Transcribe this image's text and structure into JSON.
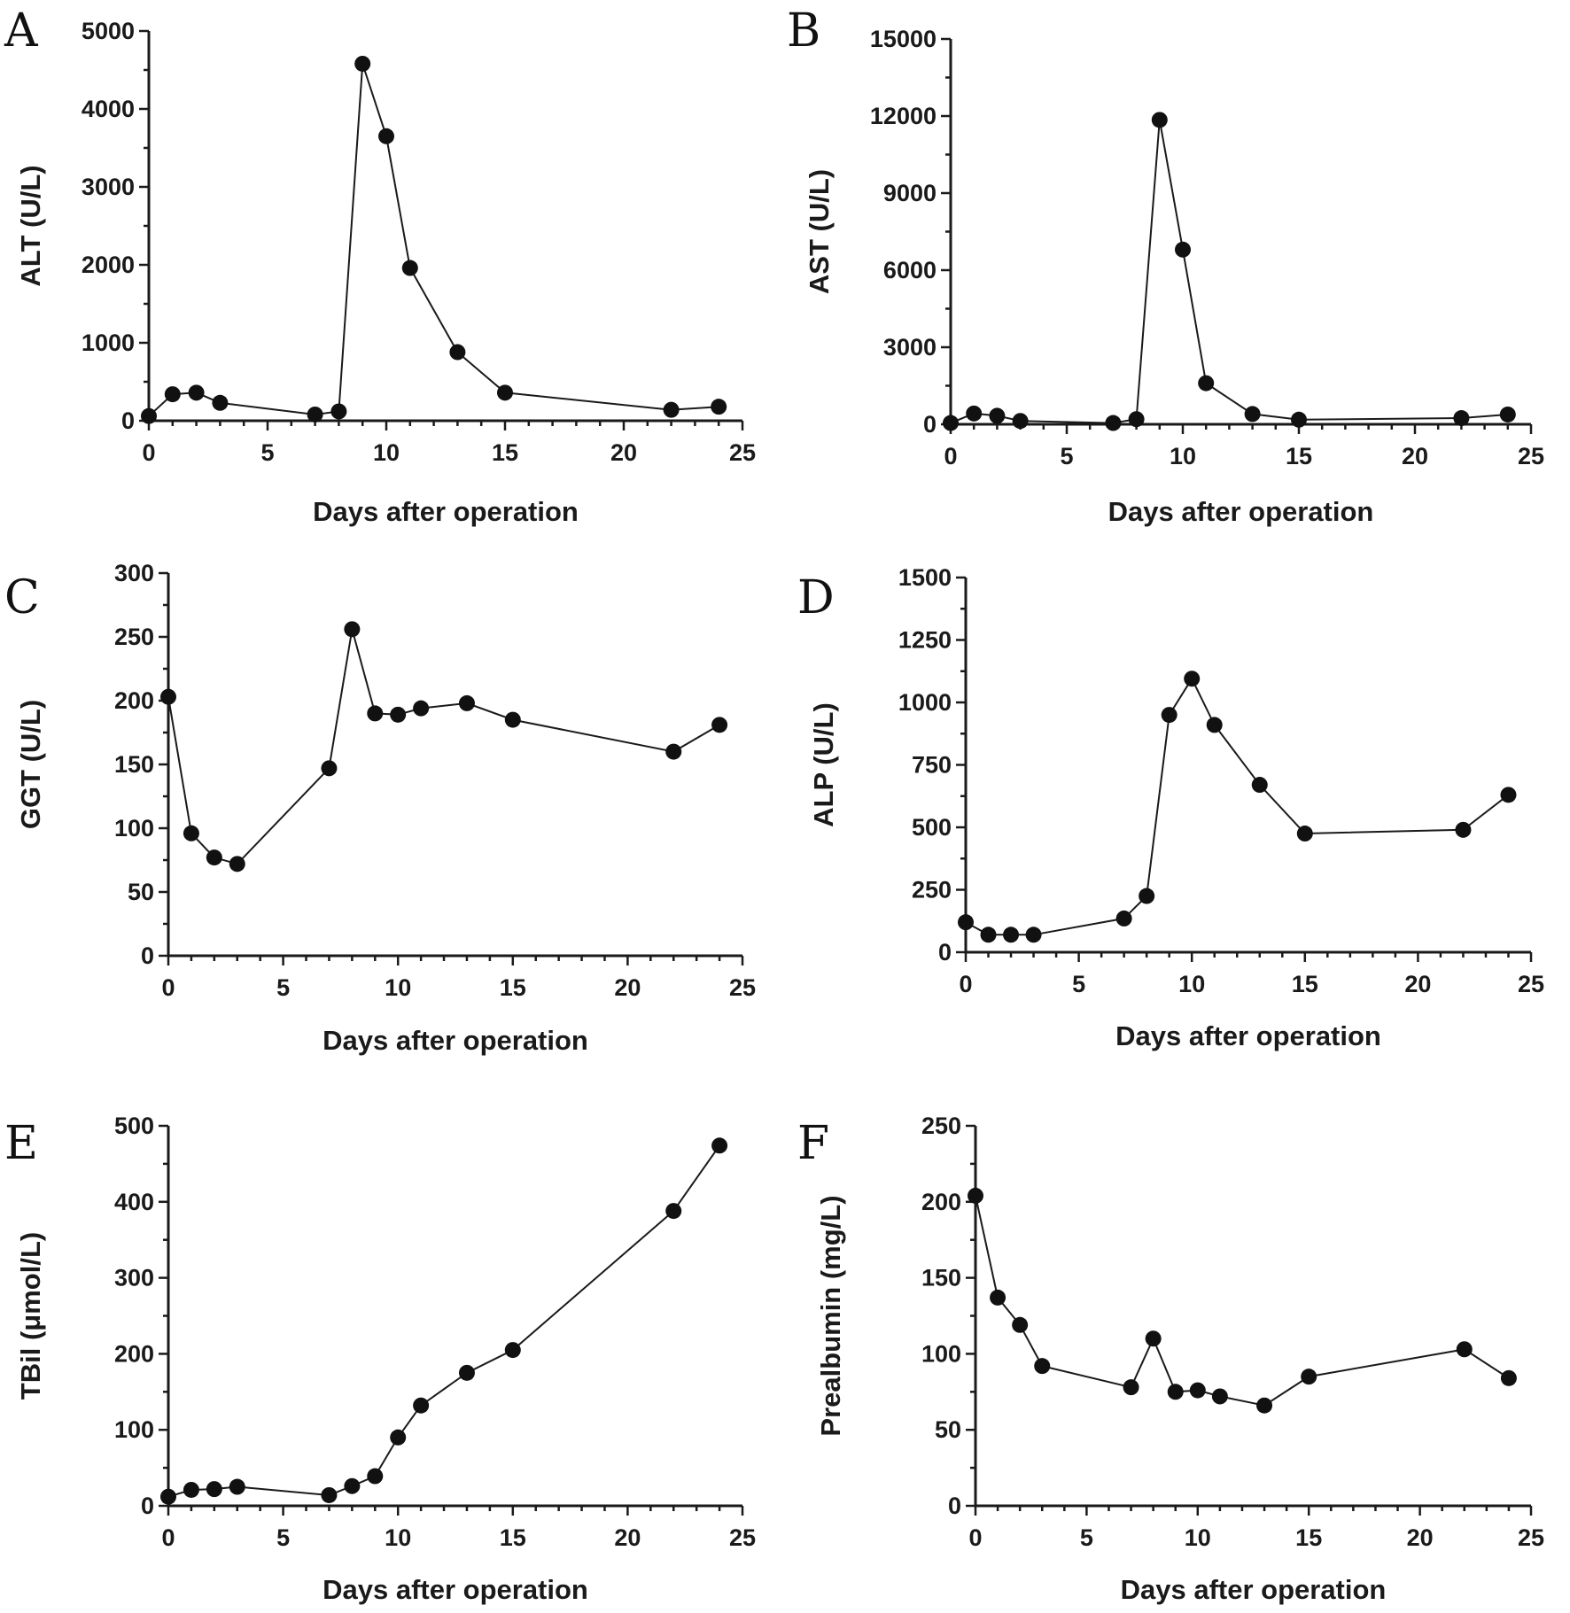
{
  "chart_data": [
    {
      "panel": "A",
      "type": "line",
      "xlabel": "Days after operation",
      "ylabel": "ALT (U/L)",
      "xlim": [
        0,
        25
      ],
      "ylim": [
        0,
        5000
      ],
      "xticks": [
        0,
        5,
        10,
        15,
        20,
        25
      ],
      "yticks": [
        0,
        1000,
        2000,
        3000,
        4000,
        5000
      ],
      "x": [
        0,
        1,
        2,
        3,
        7,
        8,
        9,
        10,
        11,
        13,
        15,
        22,
        24
      ],
      "values": [
        60,
        340,
        360,
        230,
        80,
        120,
        4580,
        3650,
        1960,
        880,
        360,
        140,
        180
      ]
    },
    {
      "panel": "B",
      "type": "line",
      "xlabel": "Days after operation",
      "ylabel": "AST (U/L)",
      "xlim": [
        0,
        25
      ],
      "ylim": [
        0,
        15000
      ],
      "xticks": [
        0,
        5,
        10,
        15,
        20,
        25
      ],
      "yticks": [
        0,
        3000,
        6000,
        9000,
        12000,
        15000
      ],
      "x": [
        0,
        1,
        2,
        3,
        7,
        8,
        9,
        10,
        11,
        13,
        15,
        22,
        24
      ],
      "values": [
        50,
        420,
        330,
        130,
        50,
        200,
        11850,
        6800,
        1600,
        400,
        180,
        240,
        380
      ]
    },
    {
      "panel": "C",
      "type": "line",
      "xlabel": "Days after operation",
      "ylabel": "GGT (U/L)",
      "xlim": [
        0,
        25
      ],
      "ylim": [
        0,
        300
      ],
      "xticks": [
        0,
        5,
        10,
        15,
        20,
        25
      ],
      "yticks": [
        0,
        50,
        100,
        150,
        200,
        250,
        300
      ],
      "x": [
        0,
        1,
        2,
        3,
        7,
        8,
        9,
        10,
        11,
        13,
        15,
        22,
        24
      ],
      "values": [
        203,
        96,
        77,
        72,
        147,
        256,
        190,
        189,
        194,
        198,
        185,
        160,
        181
      ]
    },
    {
      "panel": "D",
      "type": "line",
      "xlabel": "Days after operation",
      "ylabel": "ALP (U/L)",
      "xlim": [
        0,
        25
      ],
      "ylim": [
        0,
        1500
      ],
      "xticks": [
        0,
        5,
        10,
        15,
        20,
        25
      ],
      "yticks": [
        0,
        250,
        500,
        750,
        1000,
        1250,
        1500
      ],
      "x": [
        0,
        1,
        2,
        3,
        7,
        8,
        9,
        10,
        11,
        13,
        15,
        22,
        24
      ],
      "values": [
        120,
        70,
        70,
        70,
        135,
        225,
        950,
        1095,
        910,
        670,
        475,
        490,
        630
      ]
    },
    {
      "panel": "E",
      "type": "line",
      "xlabel": "Days after operation",
      "ylabel": "TBil (μmol/L)",
      "xlim": [
        0,
        25
      ],
      "ylim": [
        0,
        500
      ],
      "xticks": [
        0,
        5,
        10,
        15,
        20,
        25
      ],
      "yticks": [
        0,
        100,
        200,
        300,
        400,
        500
      ],
      "x": [
        0,
        1,
        2,
        3,
        7,
        8,
        9,
        10,
        11,
        13,
        15,
        22,
        24
      ],
      "values": [
        12,
        21,
        22,
        25,
        14,
        26,
        39,
        90,
        132,
        175,
        205,
        388,
        474
      ]
    },
    {
      "panel": "F",
      "type": "line",
      "xlabel": "Days after operation",
      "ylabel": "Prealbumin (mg/L)",
      "xlim": [
        0,
        25
      ],
      "ylim": [
        0,
        250
      ],
      "xticks": [
        0,
        5,
        10,
        15,
        20,
        25
      ],
      "yticks": [
        0,
        50,
        100,
        150,
        200,
        250
      ],
      "x": [
        0,
        1,
        2,
        3,
        7,
        8,
        9,
        10,
        11,
        13,
        15,
        22,
        24
      ],
      "values": [
        204,
        137,
        119,
        92,
        78,
        110,
        75,
        76,
        72,
        66,
        85,
        103,
        84
      ]
    }
  ]
}
